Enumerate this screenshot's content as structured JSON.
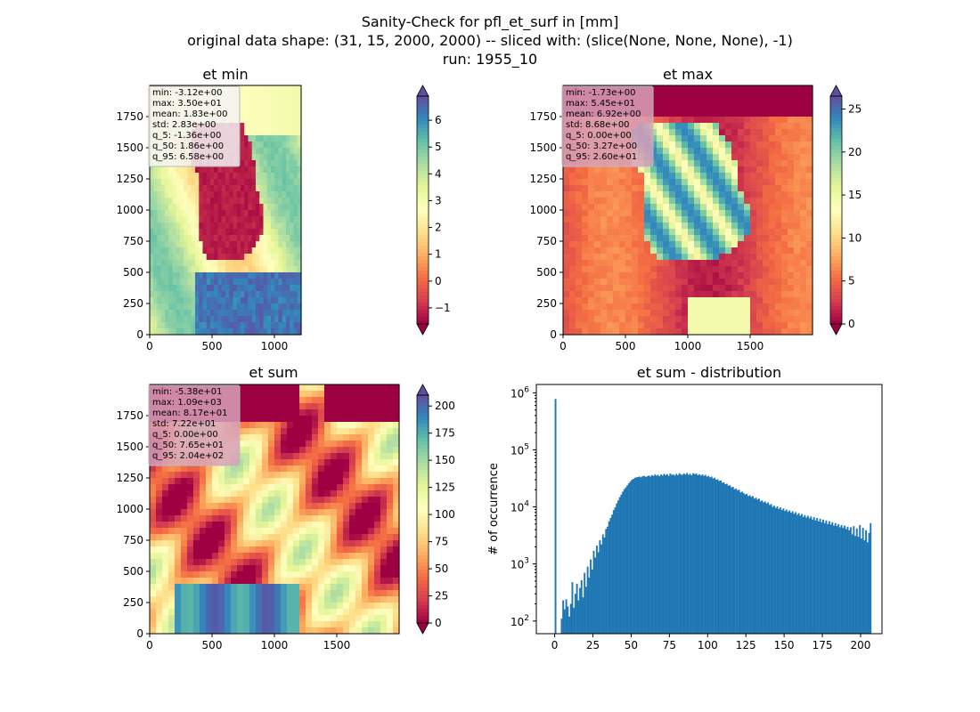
{
  "figure": {
    "title_lines": [
      "Sanity-Check for pfl_et_surf in [mm]",
      "original data shape: (31, 15, 2000, 2000) -- sliced with: (slice(None, None, None), -1)",
      "run: 1955_10"
    ]
  },
  "chart_data": [
    {
      "type": "heatmap",
      "title": "et min",
      "x_ticks": [
        "0",
        "500",
        "1000",
        "1500"
      ],
      "y_ticks": [
        "0",
        "250",
        "500",
        "750",
        "1000",
        "1250",
        "1500",
        "1750"
      ],
      "xlim": [
        0,
        2000
      ],
      "ylim": [
        0,
        2000
      ],
      "colormap": "Spectral",
      "colorbar": {
        "min": -1.6,
        "max": 6.9,
        "ticks": [
          "−1",
          "0",
          "1",
          "2",
          "3",
          "4",
          "5",
          "6"
        ],
        "tick_values": [
          -1,
          0,
          1,
          2,
          3,
          4,
          5,
          6
        ],
        "extend": "both"
      },
      "stats": [
        "min: -3.12e+00",
        "max: 3.50e+01",
        "mean: 1.83e+00",
        "std: 2.83e+00",
        "q_5: -1.36e+00",
        "q_50: 1.86e+00",
        "q_95: 6.58e+00"
      ],
      "stats_box_color": "#f3f3f3"
    },
    {
      "type": "heatmap",
      "title": "et max",
      "x_ticks": [
        "0",
        "500",
        "1000",
        "1500"
      ],
      "y_ticks": [
        "0",
        "250",
        "500",
        "750",
        "1000",
        "1250",
        "1500",
        "1750"
      ],
      "xlim": [
        0,
        2000
      ],
      "ylim": [
        0,
        2000
      ],
      "colormap": "Spectral",
      "colorbar": {
        "min": 0,
        "max": 26.5,
        "ticks": [
          "0",
          "5",
          "10",
          "15",
          "20",
          "25"
        ],
        "tick_values": [
          0,
          5,
          10,
          15,
          20,
          25
        ],
        "extend": "both"
      },
      "stats": [
        "min: -1.73e+00",
        "max: 5.45e+01",
        "mean: 6.92e+00",
        "std: 8.68e+00",
        "q_5: 0.00e+00",
        "q_50: 3.27e+00",
        "q_95: 2.60e+01"
      ],
      "stats_box_color": "#d8a0b8"
    },
    {
      "type": "heatmap",
      "title": "et sum",
      "x_ticks": [
        "0",
        "500",
        "1000",
        "1500"
      ],
      "y_ticks": [
        "0",
        "250",
        "500",
        "750",
        "1000",
        "1250",
        "1500",
        "1750"
      ],
      "xlim": [
        0,
        2000
      ],
      "ylim": [
        0,
        2000
      ],
      "colormap": "Spectral",
      "colorbar": {
        "min": 0,
        "max": 210,
        "ticks": [
          "0",
          "25",
          "50",
          "75",
          "100",
          "125",
          "150",
          "175",
          "200"
        ],
        "tick_values": [
          0,
          25,
          50,
          75,
          100,
          125,
          150,
          175,
          200
        ],
        "extend": "both"
      },
      "stats": [
        "min: -5.38e+01",
        "max: 1.09e+03",
        "mean: 8.17e+01",
        "std: 7.22e+01",
        "q_5: 0.00e+00",
        "q_50: 7.65e+01",
        "q_95: 2.04e+02"
      ],
      "stats_box_color": "#d8a0b8"
    },
    {
      "type": "bar",
      "title": "et sum - distribution",
      "ylabel": "# of occurrence",
      "xlabel": "",
      "yscale": "log",
      "x_ticks": [
        "0",
        "25",
        "50",
        "75",
        "100",
        "125",
        "150",
        "175",
        "200"
      ],
      "x_tick_values": [
        0,
        25,
        50,
        75,
        100,
        125,
        150,
        175,
        200
      ],
      "y_ticks": [
        "10^2",
        "10^3",
        "10^4",
        "10^5",
        "10^6"
      ],
      "xlim": [
        -12,
        214
      ],
      "ylim": [
        60,
        1400000
      ],
      "bar_color": "#1f77b4",
      "bins": {
        "start": 0,
        "width": 1,
        "counts": [
          780000,
          0,
          60,
          0,
          110,
          230,
          160,
          240,
          180,
          120,
          200,
          480,
          170,
          300,
          450,
          230,
          380,
          520,
          260,
          700,
          400,
          900,
          580,
          1200,
          800,
          1700,
          1300,
          2100,
          1600,
          2600,
          2200,
          3300,
          2900,
          4100,
          4500,
          5600,
          6400,
          7300,
          8800,
          9800,
          11500,
          13000,
          14800,
          16500,
          18500,
          20500,
          22000,
          24000,
          26000,
          28000,
          30000,
          31000,
          32500,
          33000,
          33500,
          34000,
          33000,
          34500,
          35000,
          33500,
          34500,
          35500,
          34000,
          36000,
          35000,
          37000,
          35500,
          36500,
          34500,
          37000,
          35500,
          38000,
          36000,
          37500,
          35000,
          38500,
          36500,
          37000,
          35500,
          38000,
          36000,
          39000,
          37000,
          36500,
          38500,
          37000,
          39500,
          36500,
          38000,
          36000,
          39000,
          37500,
          38500,
          36000,
          37500,
          35500,
          37000,
          35000,
          36500,
          34000,
          35000,
          33000,
          34000,
          31500,
          32500,
          30000,
          30500,
          28500,
          29000,
          26500,
          27000,
          25000,
          25500,
          23500,
          24000,
          22000,
          22500,
          20500,
          21000,
          19500,
          20000,
          18000,
          18500,
          17500,
          16500,
          17000,
          15500,
          16000,
          15000,
          15500,
          14000,
          14500,
          13500,
          14000,
          12500,
          13000,
          12000,
          12500,
          11500,
          12000,
          10800,
          11200,
          10000,
          10500,
          9600,
          10200,
          9200,
          9800,
          8800,
          9400,
          8500,
          9000,
          8200,
          8700,
          7900,
          8400,
          7600,
          8100,
          7300,
          7800,
          7000,
          7500,
          6700,
          7200,
          6500,
          7000,
          6300,
          6800,
          6000,
          6600,
          5800,
          6400,
          5600,
          6200,
          5400,
          6000,
          5200,
          5800,
          5000,
          5600,
          4900,
          5400,
          4700,
          5200,
          4600,
          5000,
          4400,
          4800,
          4300,
          4700,
          4100,
          4500,
          3900,
          4400,
          3300,
          4600,
          3100,
          4200,
          3000,
          4800,
          2800,
          4300,
          2600,
          3900,
          2400,
          3500,
          5200
        ]
      }
    }
  ]
}
